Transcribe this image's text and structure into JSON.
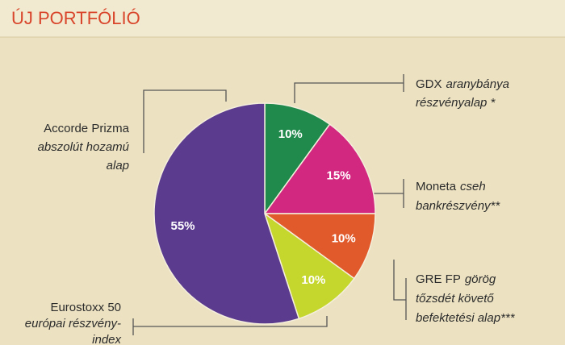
{
  "chart_data": {
    "type": "pie",
    "title": "ÚJ PORTFÓLIÓ",
    "categories": [
      "GDX",
      "Moneta",
      "GRE FP",
      "Eurostoxx 50",
      "Accorde Prizma"
    ],
    "descriptions": [
      [
        "aranybánya",
        "részvényalap *"
      ],
      [
        "cseh",
        "bankrészvény**"
      ],
      [
        "görög",
        "tőzsdét követő",
        "befektetési alap***"
      ],
      [
        "európai részvény-",
        "index"
      ],
      [
        "abszolút hozamú",
        "alap"
      ]
    ],
    "values": [
      10,
      15,
      10,
      10,
      55
    ],
    "value_labels": [
      "10%",
      "15%",
      "10%",
      "10%",
      "55%"
    ],
    "colors": [
      "#1f8a4c",
      "#d2287f",
      "#e05a2c",
      "#c5d62c",
      "#5b3b8e"
    ]
  }
}
